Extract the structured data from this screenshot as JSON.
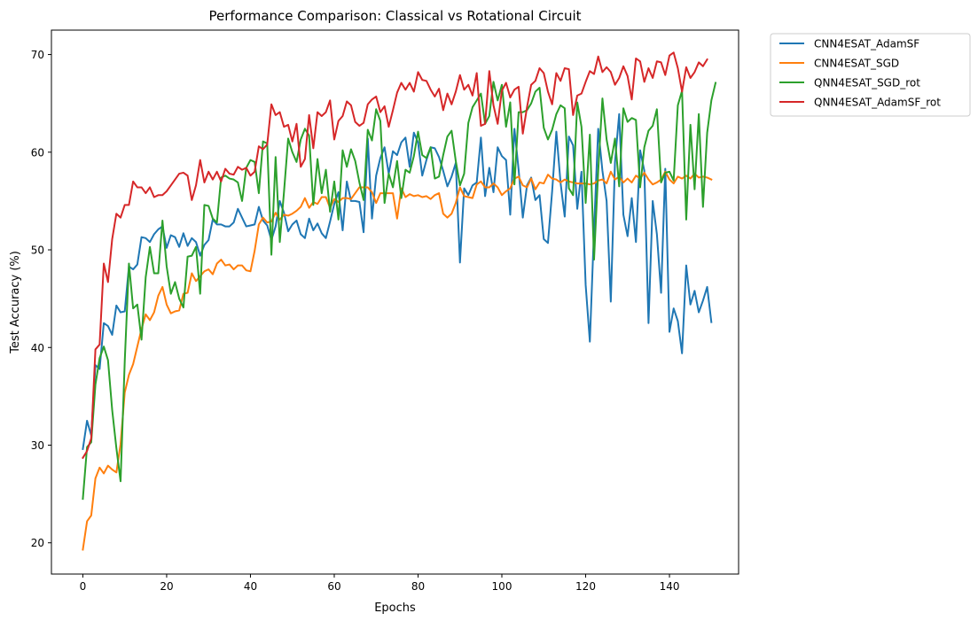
{
  "chart_data": {
    "type": "line",
    "title": "Performance Comparison: Classical vs Rotational Circuit",
    "xlabel": "Epochs",
    "ylabel": "Test Accuracy (%)",
    "xlim": [
      -7.5,
      156.5
    ],
    "ylim": [
      16.8,
      72.5
    ],
    "xticks": [
      0,
      20,
      40,
      60,
      80,
      100,
      120,
      140
    ],
    "yticks": [
      20,
      30,
      40,
      50,
      60,
      70
    ],
    "grid": false,
    "legend_position": "outside-top-right",
    "series": [
      {
        "name": "CNN4ESAT_AdamSF",
        "color": "#1f77b4",
        "values": [
          29.6,
          32.5,
          31.0,
          38.2,
          37.8,
          42.5,
          42.2,
          41.3,
          44.3,
          43.6,
          43.7,
          48.3,
          48.0,
          48.5,
          51.3,
          51.2,
          50.8,
          51.6,
          52.1,
          52.4,
          50.2,
          51.5,
          51.3,
          50.3,
          51.7,
          50.4,
          51.2,
          50.8,
          49.4,
          50.5,
          51.0,
          53.1,
          52.6,
          52.6,
          52.4,
          52.4,
          52.8,
          54.2,
          53.3,
          52.4,
          52.5,
          52.6,
          54.4,
          53.0,
          52.5,
          51.0,
          52.4,
          55.0,
          53.8,
          51.9,
          52.6,
          53.0,
          51.6,
          51.2,
          53.2,
          52.0,
          52.7,
          51.7,
          51.2,
          52.9,
          54.7,
          55.9,
          52.0,
          57.0,
          55.0,
          55.0,
          54.9,
          51.8,
          61.4,
          53.2,
          57.6,
          59.4,
          60.5,
          57.8,
          60.1,
          59.7,
          61.0,
          61.5,
          58.5,
          62.0,
          61.0,
          57.6,
          59.2,
          60.5,
          60.4,
          59.5,
          58.1,
          56.5,
          57.5,
          58.9,
          48.7,
          56.3,
          55.6,
          56.6,
          56.9,
          61.5,
          55.5,
          58.4,
          55.9,
          60.5,
          59.6,
          59.2,
          53.6,
          62.4,
          58.2,
          53.3,
          56.6,
          57.4,
          55.1,
          55.6,
          51.1,
          50.7,
          56.0,
          62.1,
          56.9,
          53.4,
          61.6,
          60.7,
          54.2,
          58.0,
          46.4,
          40.6,
          52.1,
          62.4,
          58.1,
          55.0,
          44.7,
          59.0,
          63.9,
          53.6,
          51.4,
          55.3,
          50.8,
          60.2,
          58.1,
          42.5,
          55.0,
          51.6,
          45.6,
          58.3,
          41.6,
          44.0,
          42.7,
          39.4,
          48.4,
          44.4,
          45.8,
          43.6,
          44.8,
          46.2,
          42.6
        ]
      },
      {
        "name": "CNN4ESAT_SGD",
        "color": "#ff7f0e",
        "values": [
          19.3,
          22.2,
          22.8,
          26.6,
          27.7,
          27.1,
          27.9,
          27.5,
          27.2,
          30.1,
          35.4,
          37.2,
          38.3,
          40.1,
          41.9,
          43.4,
          42.8,
          43.6,
          45.3,
          46.2,
          44.4,
          43.5,
          43.7,
          43.8,
          45.5,
          45.6,
          47.6,
          46.8,
          47.3,
          47.8,
          48.0,
          47.5,
          48.6,
          49.0,
          48.4,
          48.5,
          48.0,
          48.4,
          48.4,
          47.9,
          47.8,
          49.9,
          52.6,
          53.3,
          52.8,
          52.9,
          53.8,
          53.1,
          53.6,
          53.5,
          53.7,
          54.0,
          54.4,
          55.3,
          54.3,
          54.9,
          54.7,
          55.4,
          55.4,
          54.3,
          55.2,
          54.9,
          55.3,
          55.3,
          55.2,
          55.8,
          56.4,
          56.4,
          56.4,
          55.9,
          54.8,
          55.8,
          55.8,
          55.8,
          55.8,
          53.2,
          56.3,
          55.4,
          55.7,
          55.5,
          55.6,
          55.4,
          55.5,
          55.2,
          55.6,
          55.8,
          53.7,
          53.3,
          53.7,
          54.8,
          56.4,
          55.5,
          55.4,
          55.3,
          56.7,
          57.0,
          56.4,
          56.4,
          56.8,
          56.4,
          55.6,
          56.0,
          56.3,
          57.3,
          57.5,
          56.6,
          56.4,
          57.3,
          56.2,
          56.9,
          56.8,
          57.7,
          57.3,
          57.2,
          56.9,
          57.2,
          57.0,
          56.9,
          56.8,
          56.8,
          56.8,
          56.7,
          56.8,
          57.1,
          57.2,
          56.8,
          58.0,
          57.2,
          57.5,
          56.9,
          57.3,
          56.9,
          57.6,
          57.3,
          57.9,
          57.2,
          56.7,
          56.9,
          57.2,
          58.0,
          57.2,
          56.8,
          57.5,
          57.3,
          57.6,
          57.3,
          57.8,
          57.4,
          57.5,
          57.4,
          57.2
        ]
      },
      {
        "name": "QNN4ESAT_SGD_rot",
        "color": "#2ca02c",
        "values": [
          24.5,
          29.8,
          30.3,
          36.2,
          38.9,
          40.1,
          38.7,
          33.6,
          29.7,
          26.3,
          38.6,
          48.6,
          44.0,
          44.4,
          40.8,
          47.2,
          50.3,
          47.6,
          47.6,
          53.0,
          48.3,
          45.5,
          46.7,
          45.0,
          44.1,
          49.3,
          49.4,
          50.3,
          45.5,
          54.6,
          54.5,
          53.2,
          52.8,
          57.4,
          57.6,
          57.3,
          57.2,
          56.9,
          55.0,
          58.4,
          59.2,
          59.0,
          55.8,
          61.1,
          60.9,
          49.5,
          59.5,
          50.8,
          55.9,
          61.4,
          60.0,
          59.0,
          61.3,
          62.4,
          61.7,
          54.6,
          59.3,
          55.8,
          58.2,
          53.9,
          57.0,
          53.1,
          60.2,
          58.5,
          60.3,
          59.1,
          56.9,
          55.1,
          62.3,
          61.2,
          64.4,
          63.2,
          54.8,
          57.8,
          56.4,
          59.1,
          55.3,
          58.2,
          57.9,
          59.6,
          62.1,
          59.7,
          59.4,
          60.5,
          57.3,
          57.5,
          59.7,
          61.6,
          62.2,
          59.1,
          56.6,
          57.8,
          63.0,
          64.6,
          65.3,
          66.0,
          62.9,
          63.7,
          67.2,
          65.3,
          66.9,
          62.6,
          65.1,
          56.7,
          64.1,
          64.1,
          64.3,
          65.0,
          66.2,
          66.6,
          62.5,
          61.3,
          62.3,
          63.9,
          64.8,
          64.5,
          56.3,
          55.6,
          65.1,
          62.6,
          54.8,
          61.8,
          49.0,
          58.1,
          65.5,
          61.3,
          58.9,
          61.4,
          56.5,
          64.5,
          63.1,
          63.5,
          63.3,
          56.4,
          60.5,
          62.2,
          62.7,
          64.4,
          56.9,
          57.9,
          58.0,
          57.1,
          64.8,
          66.3,
          53.1,
          62.8,
          56.2,
          63.9,
          54.4,
          62.0,
          65.3,
          67.1
        ]
      },
      {
        "name": "QNN4ESAT_AdamSF_rot",
        "color": "#d62728",
        "values": [
          28.7,
          29.4,
          30.7,
          39.8,
          40.3,
          48.6,
          46.7,
          51.1,
          53.7,
          53.3,
          54.6,
          54.6,
          57.0,
          56.4,
          56.4,
          55.8,
          56.4,
          55.4,
          55.6,
          55.6,
          56.0,
          56.6,
          57.2,
          57.8,
          57.9,
          57.6,
          55.1,
          56.6,
          59.2,
          56.9,
          58.0,
          57.2,
          58.0,
          57.0,
          58.3,
          57.8,
          57.7,
          58.5,
          58.2,
          58.4,
          57.6,
          58.0,
          60.6,
          60.3,
          60.8,
          64.9,
          63.8,
          64.1,
          62.6,
          62.8,
          61.1,
          62.9,
          58.5,
          59.3,
          63.8,
          60.4,
          64.1,
          63.7,
          64.1,
          65.3,
          61.3,
          63.2,
          63.7,
          65.2,
          64.8,
          63.1,
          62.7,
          63.0,
          64.9,
          65.4,
          65.7,
          64.1,
          64.7,
          62.6,
          64.3,
          66.1,
          67.1,
          66.4,
          67.1,
          66.2,
          68.2,
          67.4,
          67.3,
          66.4,
          65.7,
          66.5,
          64.3,
          66.0,
          64.9,
          66.2,
          67.9,
          66.4,
          66.9,
          65.8,
          68.1,
          62.7,
          62.9,
          68.3,
          64.8,
          62.9,
          66.3,
          67.1,
          65.6,
          66.4,
          66.7,
          61.9,
          64.6,
          66.9,
          67.3,
          68.6,
          68.1,
          66.2,
          64.9,
          68.1,
          67.3,
          68.6,
          68.5,
          63.8,
          65.8,
          66.0,
          67.2,
          68.3,
          68.0,
          69.8,
          68.2,
          68.7,
          68.2,
          66.9,
          67.6,
          68.8,
          67.8,
          65.4,
          69.6,
          69.3,
          67.2,
          68.6,
          67.6,
          69.3,
          69.2,
          67.9,
          69.9,
          70.2,
          68.6,
          66.2,
          68.7,
          67.6,
          68.2,
          69.2,
          68.8,
          69.5
        ]
      }
    ]
  }
}
